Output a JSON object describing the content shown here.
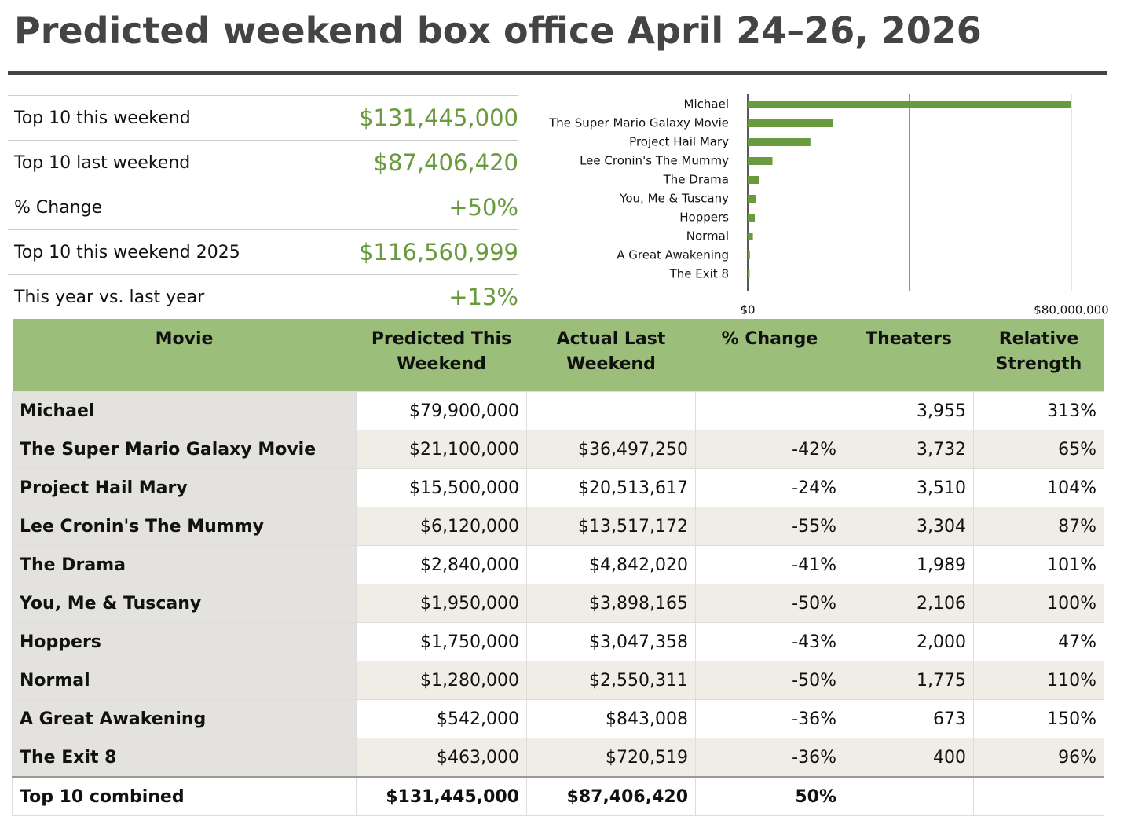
{
  "title": "Predicted weekend box office April 24–26, 2026",
  "summary": {
    "rows": [
      {
        "label": "Top 10 this weekend",
        "value": "$131,445,000"
      },
      {
        "label": "Top 10 last weekend",
        "value": "$87,406,420"
      },
      {
        "label": "% Change",
        "value": "+50%"
      },
      {
        "label": "Top 10 this weekend 2025",
        "value": "$116,560,999"
      },
      {
        "label": "This year vs. last year",
        "value": "+13%"
      }
    ]
  },
  "chart_data": {
    "type": "hbar",
    "categories": [
      "Michael",
      "The Super Mario Galaxy Movie",
      "Project Hail Mary",
      "Lee Cronin's The Mummy",
      "The Drama",
      "You, Me & Tuscany",
      "Hoppers",
      "Normal",
      "A Great Awakening",
      "The Exit 8"
    ],
    "values": [
      79900000,
      21100000,
      15500000,
      6120000,
      2840000,
      1950000,
      1750000,
      1280000,
      542000,
      463000
    ],
    "color": "#6a9a3e",
    "xlim": [
      0,
      80000000
    ],
    "xticks": [
      {
        "value": 0,
        "label": "$0"
      },
      {
        "value": 40000000,
        "label": null
      },
      {
        "value": 80000000,
        "label": "$80,000,000"
      }
    ],
    "grid": true
  },
  "table": {
    "headers": [
      "Movie",
      "Predicted This Weekend",
      "Actual Last Weekend",
      "% Change",
      "Theaters",
      "Relative Strength"
    ],
    "rows": [
      [
        "Michael",
        "$79,900,000",
        null,
        null,
        "3,955",
        "313%"
      ],
      [
        "The Super Mario Galaxy Movie",
        "$21,100,000",
        "$36,497,250",
        "-42%",
        "3,732",
        "65%"
      ],
      [
        "Project Hail Mary",
        "$15,500,000",
        "$20,513,617",
        "-24%",
        "3,510",
        "104%"
      ],
      [
        "Lee Cronin's The Mummy",
        "$6,120,000",
        "$13,517,172",
        "-55%",
        "3,304",
        "87%"
      ],
      [
        "The Drama",
        "$2,840,000",
        "$4,842,020",
        "-41%",
        "1,989",
        "101%"
      ],
      [
        "You, Me & Tuscany",
        "$1,950,000",
        "$3,898,165",
        "-50%",
        "2,106",
        "100%"
      ],
      [
        "Hoppers",
        "$1,750,000",
        "$3,047,358",
        "-43%",
        "2,000",
        "47%"
      ],
      [
        "Normal",
        "$1,280,000",
        "$2,550,311",
        "-50%",
        "1,775",
        "110%"
      ],
      [
        "A Great Awakening",
        "$542,000",
        "$843,008",
        "-36%",
        "673",
        "150%"
      ],
      [
        "The Exit 8",
        "$463,000",
        "$720,519",
        "-36%",
        "400",
        "96%"
      ]
    ],
    "footer": [
      "Top 10 combined",
      "$131,445,000",
      "$87,406,420",
      "50%",
      null,
      null
    ]
  }
}
